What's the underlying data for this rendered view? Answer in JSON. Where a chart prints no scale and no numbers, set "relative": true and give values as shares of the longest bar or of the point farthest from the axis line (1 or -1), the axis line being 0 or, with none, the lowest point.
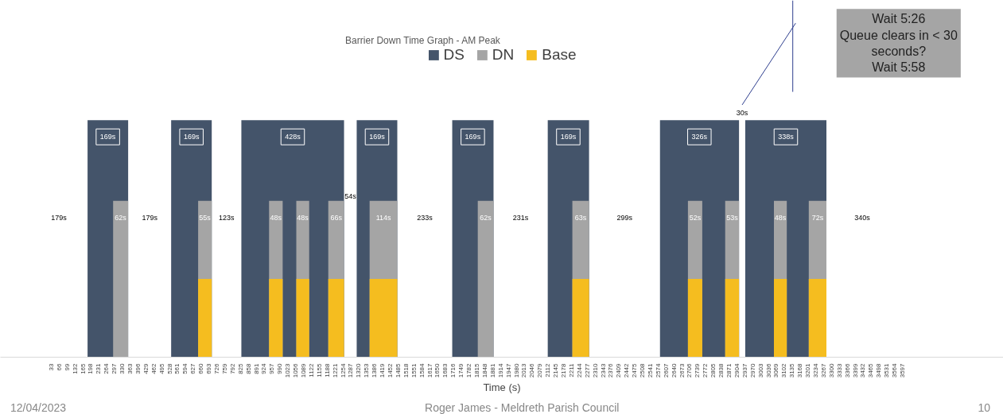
{
  "chart_data": {
    "type": "area",
    "title": "Barrier Down Time Graph - AM Peak",
    "xlabel": "Time (s)",
    "relative": true,
    "legend": "top",
    "xlim": [
      -180,
      4020
    ],
    "xticks": [
      33,
      66,
      99,
      132,
      165,
      198,
      231,
      264,
      297,
      330,
      363,
      396,
      429,
      462,
      495,
      528,
      561,
      594,
      627,
      660,
      693,
      726,
      759,
      792,
      825,
      858,
      891,
      924,
      957,
      990,
      1023,
      1056,
      1089,
      1122,
      1155,
      1188,
      1221,
      1254,
      1287,
      1320,
      1353,
      1386,
      1419,
      1452,
      1485,
      1518,
      1551,
      1584,
      1617,
      1650,
      1683,
      1716,
      1749,
      1782,
      1815,
      1848,
      1881,
      1914,
      1947,
      1980,
      2013,
      2046,
      2079,
      2112,
      2145,
      2178,
      2211,
      2244,
      2277,
      2310,
      2343,
      2376,
      2409,
      2442,
      2475,
      2508,
      2541,
      2574,
      2607,
      2640,
      2673,
      2706,
      2739,
      2772,
      2805,
      2838,
      2871,
      2904,
      2937,
      2970,
      3003,
      3036,
      3069,
      3102,
      3135,
      3168,
      3201,
      3234,
      3267,
      3300,
      3333,
      3366,
      3399,
      3432,
      3465,
      3498,
      3531,
      3564,
      3597
    ],
    "series": [
      {
        "name": "DS",
        "color": "#44546a",
        "x": [
          185,
          185,
          355,
          355,
          535,
          535,
          705,
          705,
          829,
          829,
          1259,
          1259,
          1312,
          1312,
          1482,
          1482,
          1712,
          1712,
          1885,
          1885,
          2112,
          2112,
          2285,
          2285,
          2582,
          2582,
          2913,
          2913,
          2939,
          2939,
          3279,
          3279
        ],
        "values": [
          0,
          1,
          1,
          0,
          0,
          1,
          1,
          0,
          0,
          1,
          1,
          0,
          0,
          1,
          1,
          0,
          0,
          1,
          1,
          0,
          0,
          1,
          1,
          0,
          0,
          1,
          1,
          0,
          0,
          1,
          1,
          0
        ]
      },
      {
        "name": "DN",
        "color": "#a5a5a5",
        "x": [
          292,
          292,
          355,
          355,
          648,
          648,
          705,
          705,
          945,
          945,
          1002,
          1002,
          1059,
          1059,
          1113,
          1113,
          1193,
          1193,
          1259,
          1259,
          1366,
          1366,
          1482,
          1482,
          1819,
          1819,
          1885,
          1885,
          2215,
          2215,
          2285,
          2285,
          2699,
          2699,
          2759,
          2759,
          2855,
          2855,
          2913,
          2913,
          3059,
          3059,
          3113,
          3113,
          3205,
          3205,
          3279,
          3279
        ],
        "values": [
          0,
          0.66,
          0.66,
          0,
          0,
          0.66,
          0.66,
          0,
          0,
          0.66,
          0.66,
          0,
          0,
          0.66,
          0.66,
          0,
          0,
          0.66,
          0.66,
          0,
          0,
          0.66,
          0.66,
          0,
          0,
          0.66,
          0.66,
          0,
          0,
          0.66,
          0.66,
          0,
          0,
          0.66,
          0.66,
          0,
          0,
          0.66,
          0.66,
          0,
          0,
          0.66,
          0.66,
          0,
          0,
          0.66,
          0.66,
          0
        ]
      },
      {
        "name": "Base",
        "color": "#f5bd1f",
        "x": [
          648,
          648,
          705,
          705,
          945,
          945,
          1002,
          1002,
          1059,
          1059,
          1113,
          1113,
          1193,
          1193,
          1259,
          1259,
          1366,
          1366,
          1482,
          1482,
          2215,
          2215,
          2285,
          2285,
          2699,
          2699,
          2759,
          2759,
          2855,
          2855,
          2913,
          2913,
          3059,
          3059,
          3113,
          3113,
          3205,
          3205,
          3279,
          3279
        ],
        "values": [
          0,
          0.33,
          0.33,
          0,
          0,
          0.33,
          0.33,
          0,
          0,
          0.33,
          0.33,
          0,
          0,
          0.33,
          0.33,
          0,
          0,
          0.33,
          0.33,
          0,
          0,
          0.33,
          0.33,
          0,
          0,
          0.33,
          0.33,
          0,
          0,
          0.33,
          0.33,
          0,
          0,
          0.33,
          0.33,
          0,
          0,
          0.33,
          0.33,
          0
        ]
      }
    ],
    "annotations": [
      {
        "text": "169s",
        "x": 270,
        "y": 0.93
      },
      {
        "text": "169s",
        "x": 620,
        "y": 0.93
      },
      {
        "text": "428s",
        "x": 1044,
        "y": 0.93
      },
      {
        "text": "169s",
        "x": 1397,
        "y": 0.93
      },
      {
        "text": "169s",
        "x": 1798,
        "y": 0.93
      },
      {
        "text": "169s",
        "x": 2198,
        "y": 0.93
      },
      {
        "text": "326s",
        "x": 2747,
        "y": 0.93
      },
      {
        "text": "338s",
        "x": 3109,
        "y": 0.93
      },
      {
        "text": "62s",
        "x": 323,
        "y": 0.59
      },
      {
        "text": "55s",
        "x": 676,
        "y": 0.59
      },
      {
        "text": "48s",
        "x": 973,
        "y": 0.59
      },
      {
        "text": "48s",
        "x": 1086,
        "y": 0.59
      },
      {
        "text": "66s",
        "x": 1226,
        "y": 0.59
      },
      {
        "text": "114s",
        "x": 1424,
        "y": 0.59
      },
      {
        "text": "62s",
        "x": 1852,
        "y": 0.59
      },
      {
        "text": "63s",
        "x": 2250,
        "y": 0.59
      },
      {
        "text": "52s",
        "x": 2729,
        "y": 0.59
      },
      {
        "text": "53s",
        "x": 2884,
        "y": 0.59
      },
      {
        "text": "48s",
        "x": 3086,
        "y": 0.59
      },
      {
        "text": "72s",
        "x": 3242,
        "y": 0.59
      },
      "179s",
      "179s",
      "123s",
      "54s",
      "233s",
      "231s",
      "299s",
      "30s",
      "340s",
      "Wait 5:26\nQueue clears in < 30\nseconds?\nWait 5:58",
      "12/04/2023",
      "Roger James - Meldreth Parish Council",
      "10"
    ]
  }
}
